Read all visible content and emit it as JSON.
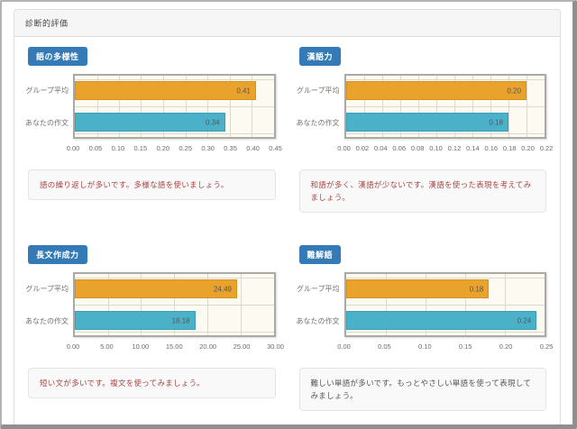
{
  "panel": {
    "title": "診断的評価"
  },
  "series_names": [
    "グループ平均",
    "あなたの作文"
  ],
  "colors": {
    "badge_bg": "#337ab7",
    "bar_group_average": "#e9a22c",
    "bar_your_essay": "#4bb1c8",
    "plot_background": "#fdfaf2",
    "gridline": "#ddd9d0",
    "plot_border": "#aba9a4",
    "message_warning_text": "#a94442",
    "message_normal_text": "#555555"
  },
  "chart_data": [
    {
      "type": "bar",
      "orientation": "horizontal",
      "title": "語の多様性",
      "categories": [
        "グループ平均",
        "あなたの作文"
      ],
      "values": [
        0.41,
        0.34
      ],
      "value_labels": [
        "0.41",
        "0.34"
      ],
      "xlim": [
        0,
        0.45
      ],
      "xticks": [
        "0.00",
        "0.05",
        "0.10",
        "0.15",
        "0.20",
        "0.25",
        "0.30",
        "0.35",
        "0.40",
        "0.45"
      ],
      "grid": true,
      "message": "語の繰り返しが多いです。多様な語を使いましょう。",
      "message_style": "warning"
    },
    {
      "type": "bar",
      "orientation": "horizontal",
      "title": "漢語力",
      "categories": [
        "グループ平均",
        "あなたの作文"
      ],
      "values": [
        0.2,
        0.18
      ],
      "value_labels": [
        "0.20",
        "0.18"
      ],
      "xlim": [
        0,
        0.22
      ],
      "xticks": [
        "0.00",
        "0.02",
        "0.04",
        "0.06",
        "0.08",
        "0.10",
        "0.12",
        "0.14",
        "0.16",
        "0.18",
        "0.20",
        "0.22"
      ],
      "grid": true,
      "message": "和語が多く、漢語が少ないです。漢語を使った表現を考えてみましょう。",
      "message_style": "warning"
    },
    {
      "type": "bar",
      "orientation": "horizontal",
      "title": "長文作成力",
      "categories": [
        "グループ平均",
        "あなたの作文"
      ],
      "values": [
        24.49,
        18.18
      ],
      "value_labels": [
        "24.49",
        "18.18"
      ],
      "xlim": [
        0,
        30
      ],
      "xticks": [
        "0.00",
        "5.00",
        "10.00",
        "15.00",
        "20.00",
        "25.00",
        "30.00"
      ],
      "grid": true,
      "message": "短い文が多いです。複文を使ってみましょう。",
      "message_style": "warning"
    },
    {
      "type": "bar",
      "orientation": "horizontal",
      "title": "難解語",
      "categories": [
        "グループ平均",
        "あなたの作文"
      ],
      "values": [
        0.18,
        0.24
      ],
      "value_labels": [
        "0.18",
        "0.24"
      ],
      "xlim": [
        0,
        0.25
      ],
      "xticks": [
        "0.00",
        "0.05",
        "0.10",
        "0.15",
        "0.20",
        "0.25"
      ],
      "grid": true,
      "message": "難しい単語が多いです。もっとやさしい単語を使って表現してみましょう。",
      "message_style": "normal"
    }
  ]
}
